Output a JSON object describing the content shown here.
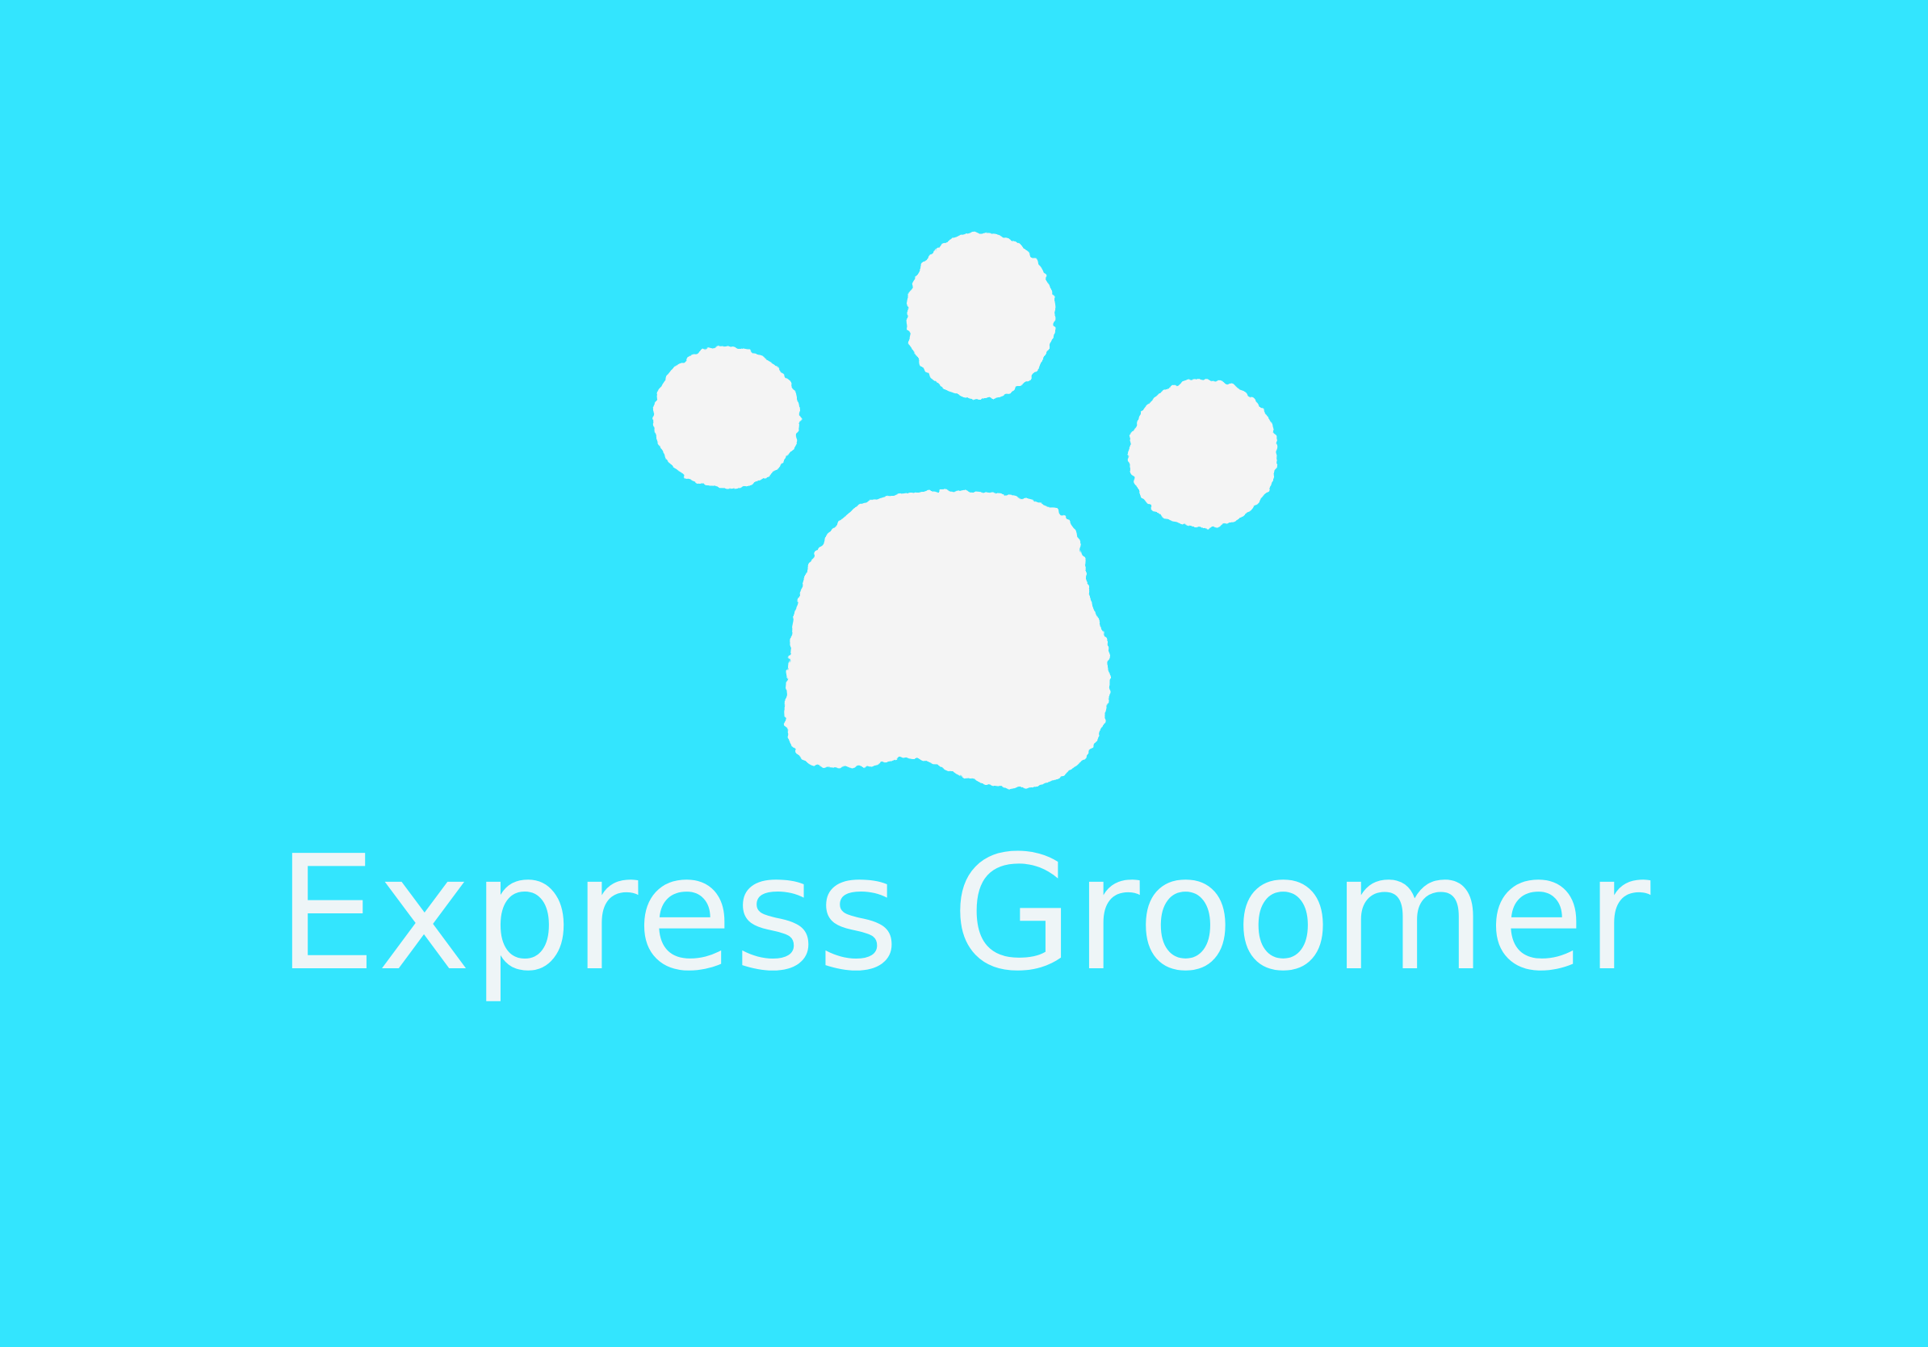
{
  "app": {
    "title": "Express Groomer"
  },
  "logo": {
    "icon": "paw-print-icon"
  },
  "colors": {
    "background": "#33e5fe",
    "logo": "#f4f4f4",
    "title": "#eef5f7"
  }
}
